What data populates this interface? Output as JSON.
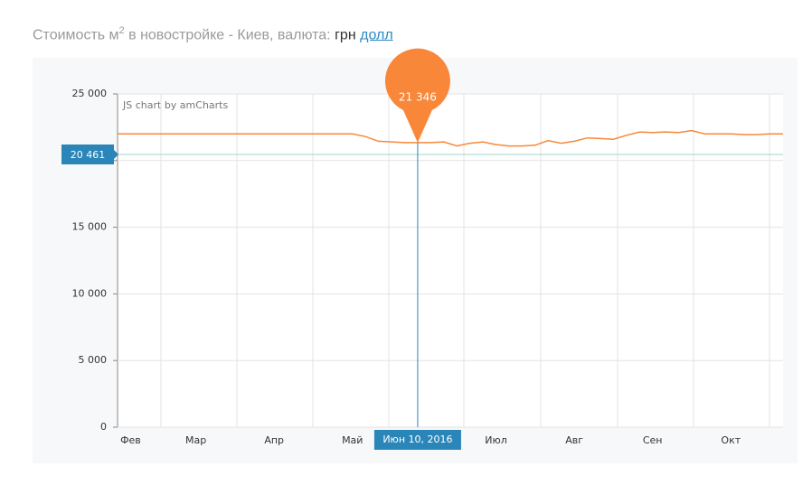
{
  "header": {
    "title": "Стоимость м",
    "title_sup": "2",
    "title_rest": "в новостройке - Киев, валюта:",
    "currencies": [
      "грн",
      "долл"
    ]
  },
  "chart_data": {
    "type": "line",
    "credit": "JS chart by amCharts",
    "color": "#f7883a",
    "categories": [
      null,
      "Фев",
      null,
      null,
      null,
      null,
      "Мар",
      null,
      null,
      null,
      null,
      null,
      "Апр",
      null,
      null,
      null,
      null,
      null,
      "Май",
      null,
      null,
      null,
      null,
      "Июн 10, 2016",
      null,
      null,
      null,
      null,
      null,
      "Июл",
      null,
      null,
      null,
      null,
      null,
      "Авг",
      null,
      null,
      null,
      null,
      null,
      "Сен",
      null,
      null,
      null,
      null,
      null,
      "Окт",
      null,
      null,
      null,
      null
    ],
    "values": [
      22000,
      22000,
      22000,
      22000,
      22000,
      22000,
      22000,
      22000,
      22000,
      22000,
      22000,
      22000,
      22000,
      22000,
      22000,
      22000,
      22000,
      22000,
      22000,
      21800,
      21450,
      21400,
      21350,
      21346,
      21350,
      21400,
      21100,
      21300,
      21400,
      21200,
      21100,
      21100,
      21150,
      21500,
      21300,
      21450,
      21700,
      21650,
      21600,
      21900,
      22150,
      22100,
      22150,
      22100,
      22250,
      22000,
      22000,
      22000,
      21950,
      21950,
      22000,
      22000
    ],
    "value_labels": [
      null,
      null,
      null,
      null,
      null,
      null,
      null,
      null,
      null,
      null,
      null,
      null,
      null,
      null,
      null,
      null,
      null,
      null,
      null,
      null,
      null,
      null,
      null,
      "21 346",
      null,
      null,
      null,
      null,
      null,
      null,
      null,
      null,
      null,
      null,
      null,
      null,
      null,
      null,
      null,
      null,
      null,
      null,
      null,
      null,
      null,
      null,
      null,
      null,
      null,
      null,
      null,
      null
    ],
    "ylim": [
      0,
      25000
    ],
    "yticks": [
      0,
      {
        "value": 5000,
        "label": "5 000"
      },
      {
        "value": 10000,
        "label": "10 000"
      },
      {
        "value": 15000,
        "label": "15 000"
      },
      {
        "value": 20000,
        "label": "20 000"
      },
      {
        "value": 25000,
        "label": "25 000"
      }
    ],
    "guide": {
      "value": 20461,
      "label": "20 461"
    },
    "grid": true
  }
}
